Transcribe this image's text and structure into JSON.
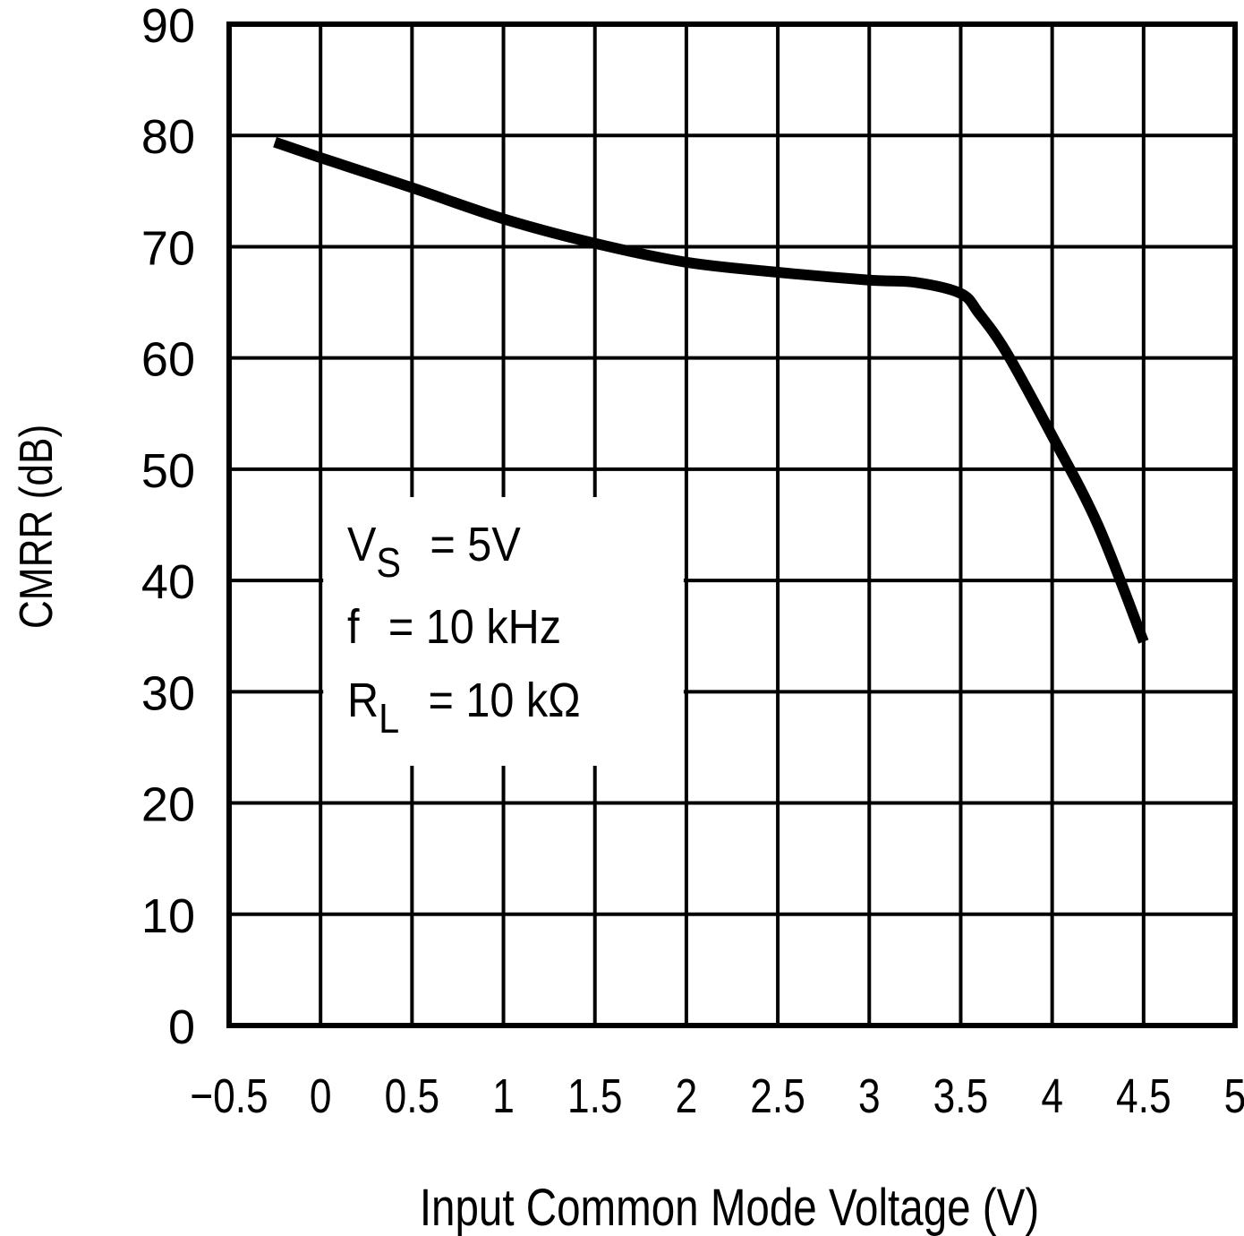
{
  "chart_data": {
    "type": "line",
    "title": "",
    "xlabel": "Input Common Mode Voltage (V)",
    "ylabel": "CMRR (dB)",
    "xlim": [
      -0.5,
      5
    ],
    "ylim": [
      0,
      90
    ],
    "grid": true,
    "x_ticks": [
      -0.5,
      0,
      0.5,
      1,
      1.5,
      2,
      2.5,
      3,
      3.5,
      4,
      4.5,
      5
    ],
    "x_tick_labels": [
      "−0.5",
      "0",
      "0.5",
      "1",
      "1.5",
      "2",
      "2.5",
      "3",
      "3.5",
      "4",
      "4.5",
      "5"
    ],
    "y_ticks": [
      0,
      10,
      20,
      30,
      40,
      50,
      60,
      70,
      80,
      90
    ],
    "y_tick_labels": [
      "0",
      "10",
      "20",
      "30",
      "40",
      "50",
      "60",
      "70",
      "80",
      "90"
    ],
    "series": [
      {
        "name": "CMRR",
        "color": "#000000",
        "x": [
          -0.25,
          0,
          0.5,
          1,
          1.5,
          2,
          2.5,
          3,
          3.25,
          3.5,
          3.6,
          3.75,
          4,
          4.25,
          4.5
        ],
        "y": [
          79.4,
          78,
          75.3,
          72.5,
          70.3,
          68.6,
          67.7,
          67,
          66.8,
          65.8,
          64,
          60.5,
          53,
          45,
          34.5
        ]
      }
    ],
    "annotations": [
      {
        "main": "V",
        "sub": "S",
        "rest": "=  5V"
      },
      {
        "main": "f",
        "sub": "",
        "rest": "=  10 kHz"
      },
      {
        "main": "R",
        "sub": "L",
        "rest": "=  10 kΩ"
      }
    ],
    "legend": "none"
  }
}
